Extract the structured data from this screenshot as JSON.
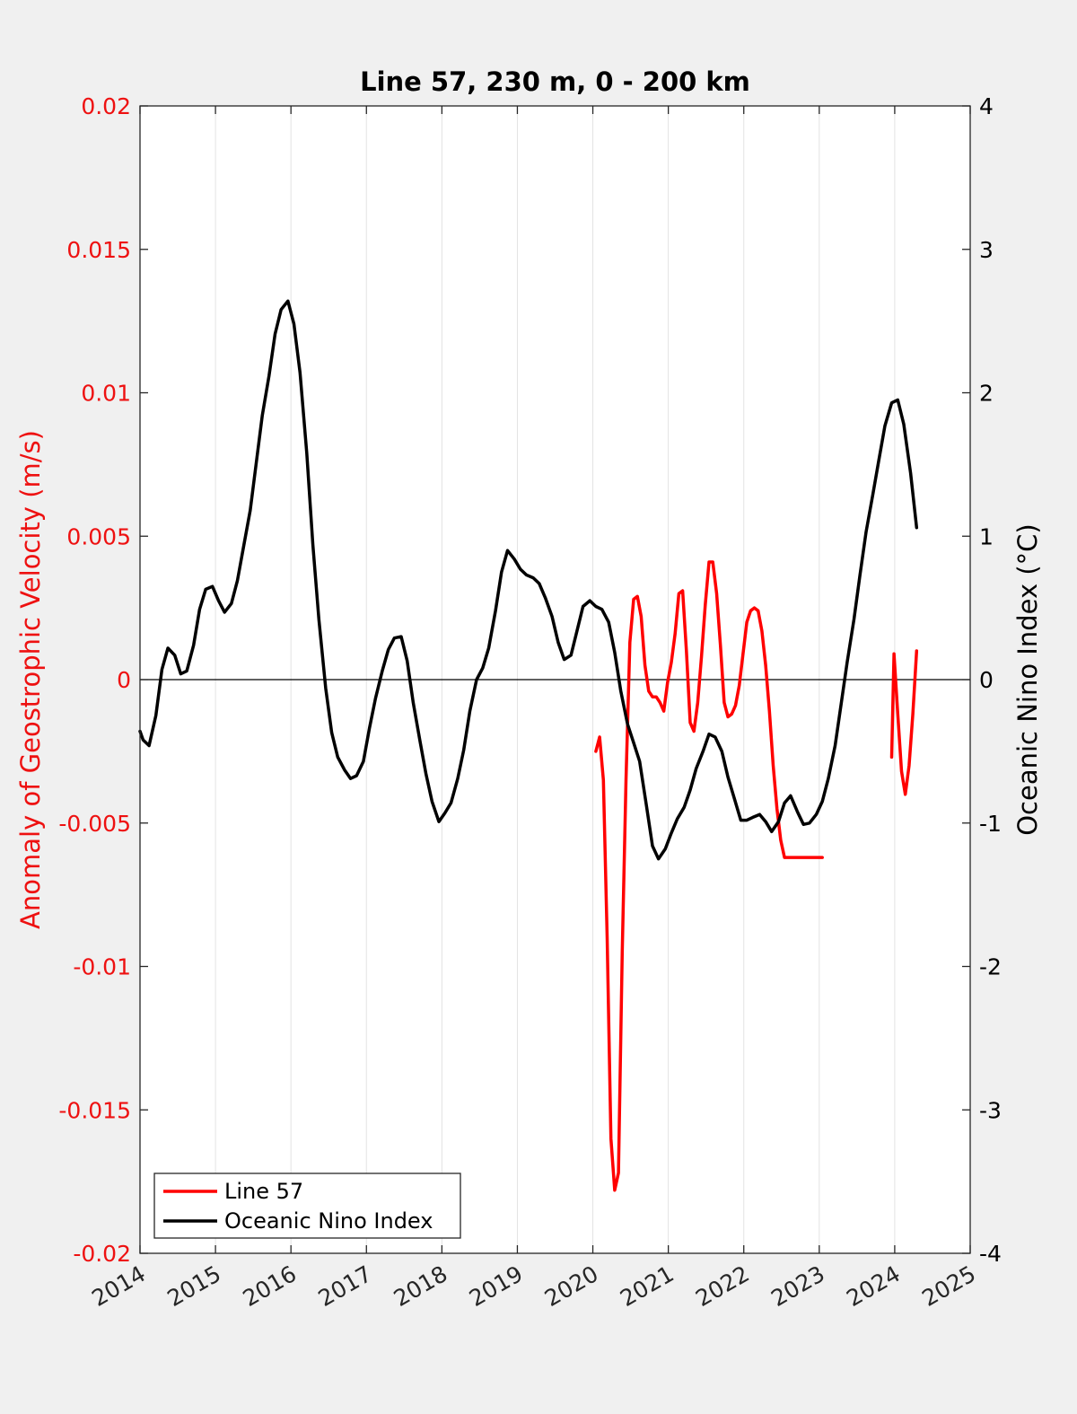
{
  "chart_data": {
    "type": "line",
    "title": "Line 57, 230 m, 0 - 200 km",
    "xlabel": "",
    "ylabel_left": "Anomaly of Geostrophic Velocity (m/s)",
    "ylabel_right": "Oceanic Nino Index (°C)",
    "xlim": [
      2014,
      2025
    ],
    "ylim_left": [
      -0.02,
      0.02
    ],
    "ylim_right": [
      -4,
      4
    ],
    "x_ticks": [
      "2014",
      "2015",
      "2016",
      "2017",
      "2018",
      "2019",
      "2020",
      "2021",
      "2022",
      "2023",
      "2024",
      "2025"
    ],
    "y_ticks_left": [
      "0.02",
      "0.015",
      "0.01",
      "0.005",
      "0",
      "-0.005",
      "-0.01",
      "-0.015",
      "-0.02"
    ],
    "y_ticks_right": [
      "4",
      "3",
      "2",
      "1",
      "0",
      "-1",
      "-2",
      "-3",
      "-4"
    ],
    "grid": "vertical",
    "zero_line": true,
    "legend_position": "bottom-left",
    "colors": {
      "line57": "#ff0000",
      "oni": "#000000",
      "left_axis": "#ee1111",
      "right_axis": "#000000"
    },
    "series": [
      {
        "name": "Line 57",
        "axis": "left",
        "color": "#ff0000",
        "segments": [
          {
            "x": [
              2020.04,
              2020.09,
              2020.14,
              2020.19,
              2020.24,
              2020.29,
              2020.34,
              2020.39,
              2020.44,
              2020.49,
              2020.54,
              2020.59,
              2020.64,
              2020.69,
              2020.74,
              2020.79,
              2020.84,
              2020.89,
              2020.94,
              2020.99,
              2021.04,
              2021.09,
              2021.14,
              2021.19,
              2021.24,
              2021.29,
              2021.34,
              2021.39,
              2021.44,
              2021.49,
              2021.54,
              2021.59,
              2021.64,
              2021.69,
              2021.74,
              2021.79,
              2021.84,
              2021.89,
              2021.94,
              2021.99,
              2022.04,
              2022.09,
              2022.14,
              2022.19,
              2022.24,
              2022.29,
              2022.34,
              2022.39,
              2022.44,
              2022.49,
              2022.54,
              2022.59,
              2022.64,
              2022.69,
              2022.74,
              2022.79,
              2022.84,
              2022.89,
              2022.94,
              2022.99,
              2023.04
            ],
            "y": [
              -0.0025,
              -0.002,
              -0.0035,
              -0.009,
              -0.016,
              -0.0178,
              -0.0172,
              -0.0095,
              -0.0035,
              0.0013,
              0.0028,
              0.0029,
              0.0022,
              0.0005,
              -0.0004,
              -0.0006,
              -0.0006,
              -0.0008,
              -0.0011,
              -0.0001,
              0.0006,
              0.0016,
              0.003,
              0.0031,
              0.001,
              -0.0015,
              -0.0018,
              -0.0008,
              0.0008,
              0.0026,
              0.0041,
              0.0041,
              0.003,
              0.0012,
              -0.0008,
              -0.0013,
              -0.0012,
              -0.0009,
              -0.0002,
              0.0009,
              0.002,
              0.0024,
              0.0025,
              0.0024,
              0.0017,
              0.0005,
              -0.0011,
              -0.003,
              -0.0045,
              -0.0056,
              -0.0062,
              -0.0062,
              -0.0062,
              -0.0062,
              -0.0062,
              -0.0062,
              -0.0062,
              -0.0062,
              -0.0062,
              -0.0062,
              -0.0062
            ]
          },
          {
            "x": [
              2023.96,
              2023.99,
              2024.04,
              2024.09,
              2024.14,
              2024.19,
              2024.24,
              2024.29
            ],
            "y": [
              -0.0027,
              0.0009,
              -0.0012,
              -0.0032,
              -0.004,
              -0.003,
              -0.0012,
              0.001
            ]
          }
        ]
      },
      {
        "name": "Oceanic Nino Index",
        "axis": "right",
        "color": "#000000",
        "x": [
          2014.0,
          2014.04,
          2014.12,
          2014.21,
          2014.29,
          2014.37,
          2014.46,
          2014.54,
          2014.62,
          2014.71,
          2014.79,
          2014.87,
          2014.96,
          2015.04,
          2015.12,
          2015.21,
          2015.29,
          2015.37,
          2015.46,
          2015.54,
          2015.62,
          2015.71,
          2015.79,
          2015.87,
          2015.96,
          2016.04,
          2016.12,
          2016.21,
          2016.29,
          2016.37,
          2016.46,
          2016.54,
          2016.62,
          2016.71,
          2016.79,
          2016.87,
          2016.96,
          2017.04,
          2017.12,
          2017.21,
          2017.29,
          2017.37,
          2017.46,
          2017.54,
          2017.62,
          2017.71,
          2017.79,
          2017.87,
          2017.96,
          2018.04,
          2018.12,
          2018.21,
          2018.29,
          2018.37,
          2018.46,
          2018.54,
          2018.62,
          2018.71,
          2018.79,
          2018.87,
          2018.96,
          2019.04,
          2019.12,
          2019.21,
          2019.29,
          2019.37,
          2019.46,
          2019.54,
          2019.62,
          2019.71,
          2019.79,
          2019.87,
          2019.96,
          2020.04,
          2020.12,
          2020.21,
          2020.29,
          2020.37,
          2020.46,
          2020.54,
          2020.62,
          2020.71,
          2020.79,
          2020.87,
          2020.96,
          2021.04,
          2021.12,
          2021.21,
          2021.29,
          2021.37,
          2021.46,
          2021.54,
          2021.62,
          2021.71,
          2021.79,
          2021.87,
          2021.96,
          2022.04,
          2022.12,
          2022.21,
          2022.29,
          2022.37,
          2022.46,
          2022.54,
          2022.62,
          2022.71,
          2022.79,
          2022.87,
          2022.96,
          2023.04,
          2023.12,
          2023.21,
          2023.29,
          2023.37,
          2023.46,
          2023.54,
          2023.62,
          2023.71,
          2023.79,
          2023.87,
          2023.96,
          2024.04,
          2024.12,
          2024.21,
          2024.29
        ],
        "y": [
          -0.36,
          -0.42,
          -0.46,
          -0.25,
          0.07,
          0.22,
          0.17,
          0.04,
          0.06,
          0.24,
          0.49,
          0.63,
          0.65,
          0.55,
          0.47,
          0.53,
          0.69,
          0.92,
          1.18,
          1.51,
          1.84,
          2.12,
          2.41,
          2.58,
          2.64,
          2.48,
          2.14,
          1.58,
          0.94,
          0.42,
          -0.06,
          -0.37,
          -0.54,
          -0.63,
          -0.69,
          -0.67,
          -0.57,
          -0.34,
          -0.13,
          0.06,
          0.21,
          0.29,
          0.3,
          0.13,
          -0.16,
          -0.43,
          -0.66,
          -0.85,
          -0.99,
          -0.93,
          -0.86,
          -0.69,
          -0.49,
          -0.22,
          0.0,
          0.08,
          0.22,
          0.48,
          0.75,
          0.9,
          0.84,
          0.77,
          0.73,
          0.71,
          0.67,
          0.57,
          0.44,
          0.26,
          0.14,
          0.17,
          0.34,
          0.51,
          0.55,
          0.51,
          0.49,
          0.4,
          0.19,
          -0.08,
          -0.31,
          -0.44,
          -0.57,
          -0.88,
          -1.16,
          -1.25,
          -1.18,
          -1.07,
          -0.97,
          -0.89,
          -0.77,
          -0.62,
          -0.5,
          -0.38,
          -0.4,
          -0.5,
          -0.68,
          -0.82,
          -0.98,
          -0.98,
          -0.96,
          -0.94,
          -0.99,
          -1.06,
          -0.99,
          -0.86,
          -0.81,
          -0.92,
          -1.01,
          -1.0,
          -0.94,
          -0.85,
          -0.69,
          -0.46,
          -0.17,
          0.12,
          0.42,
          0.73,
          1.03,
          1.29,
          1.53,
          1.77,
          1.93,
          1.95,
          1.78,
          1.44,
          1.06
        ]
      }
    ]
  }
}
